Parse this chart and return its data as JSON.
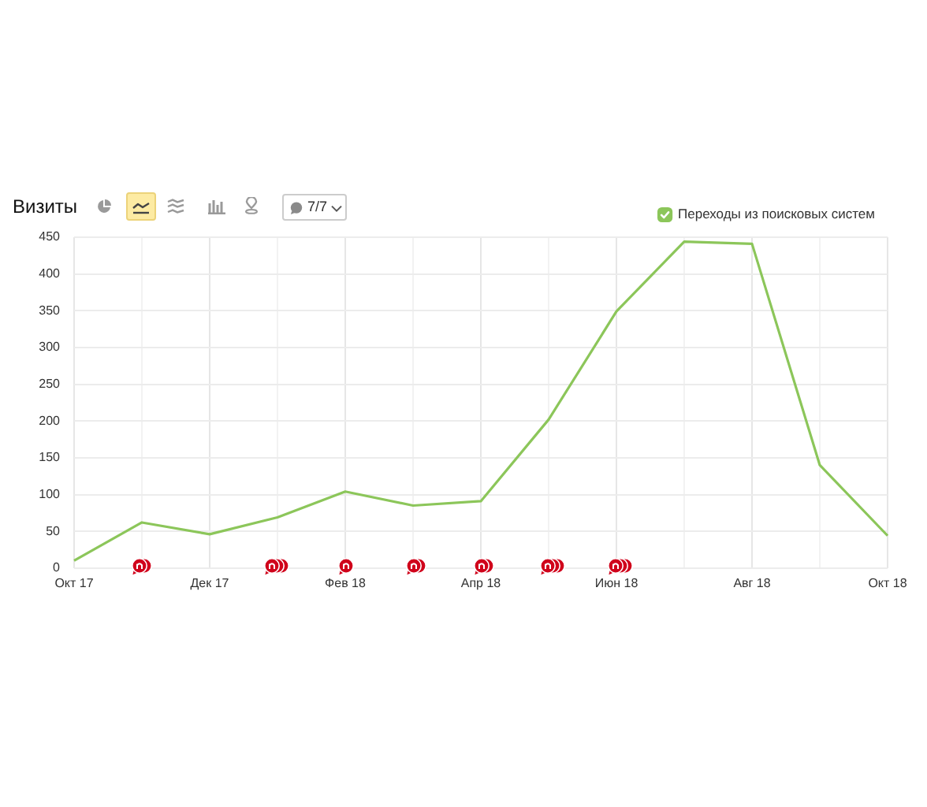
{
  "chart_data": {
    "type": "line",
    "title": "Визиты",
    "categories": [
      "Окт 17",
      null,
      "Дек 17",
      null,
      "Фев 18",
      null,
      "Апр 18",
      null,
      "Июн 18",
      null,
      "Авг 18",
      null,
      "Окт 18"
    ],
    "series": [
      {
        "name": "Переходы из поисковых систем",
        "color": "#8cc65a",
        "values": [
          10,
          62,
          46,
          69,
          104,
          85,
          91,
          202,
          349,
          444,
          441,
          140,
          44
        ]
      }
    ],
    "ylim": [
      0,
      450
    ],
    "yticks": [
      0,
      50,
      100,
      150,
      200,
      250,
      300,
      350,
      400,
      450
    ],
    "grid": true,
    "legend": "top right",
    "marker": "none",
    "annotations": [
      "7/7"
    ]
  }
}
